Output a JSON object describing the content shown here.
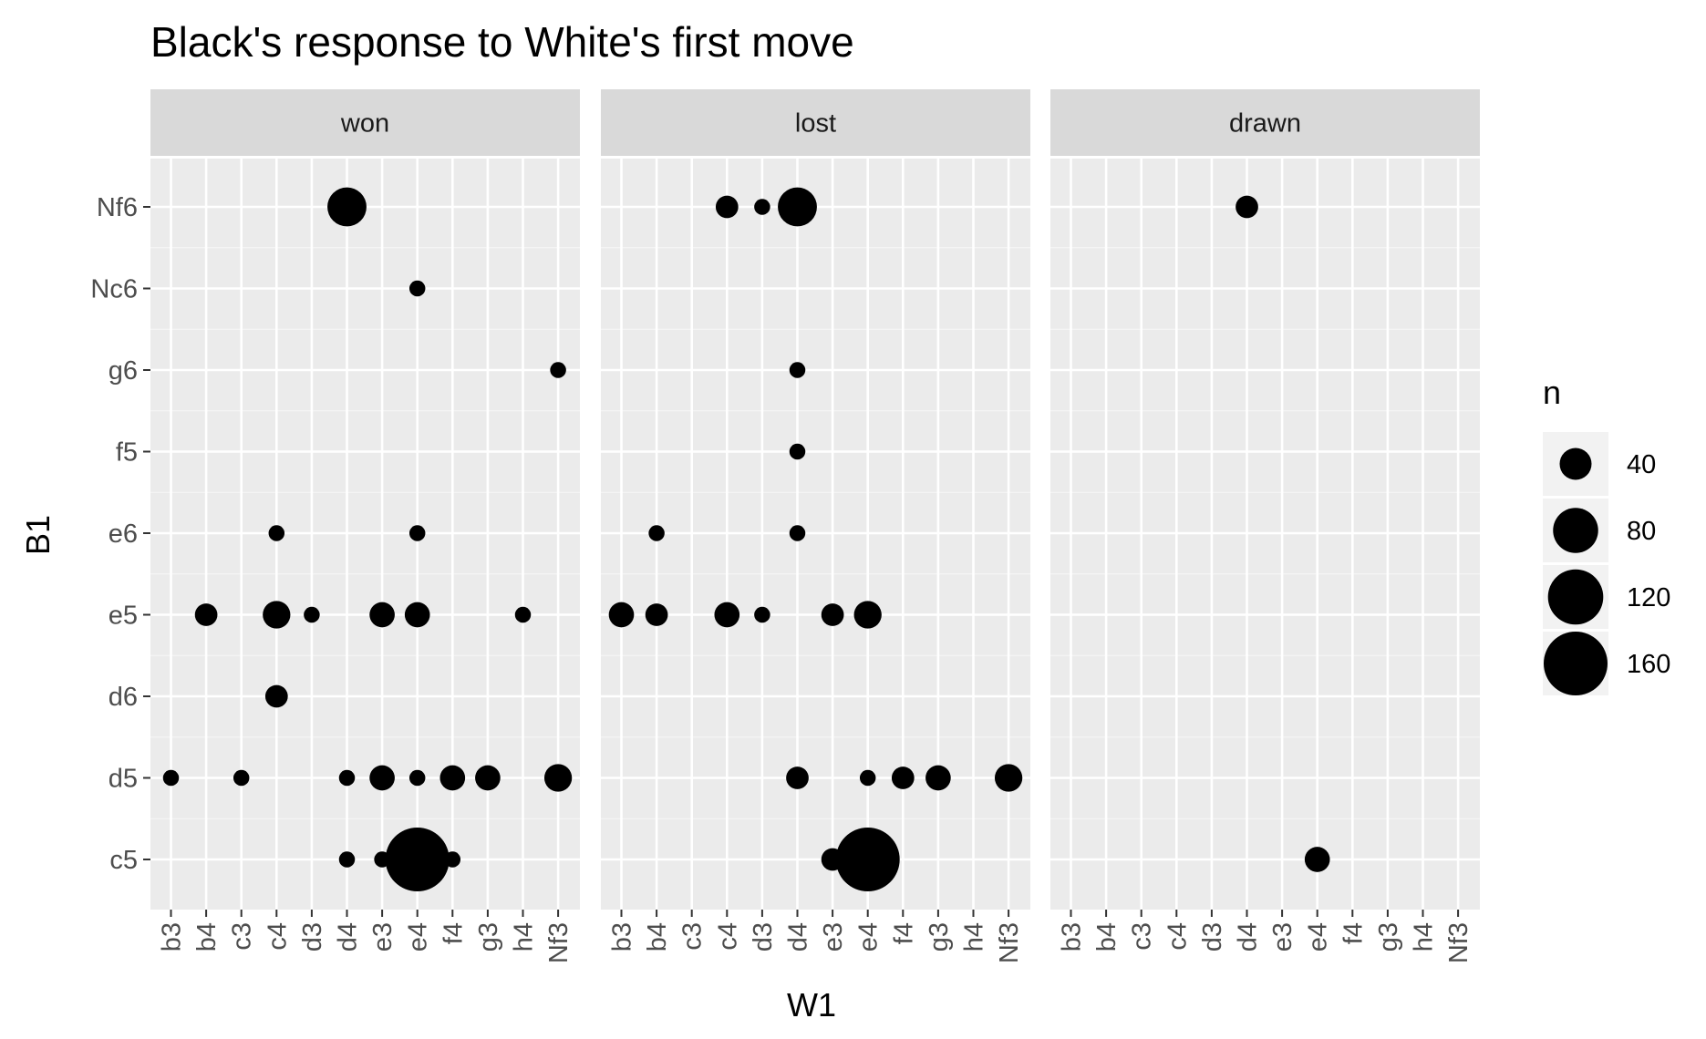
{
  "chart_data": {
    "type": "scatter",
    "title": "Black's response to White's first move",
    "xlabel": "W1",
    "ylabel": "B1",
    "x_categories": [
      "b3",
      "b4",
      "c3",
      "c4",
      "d3",
      "d4",
      "e3",
      "e4",
      "f4",
      "g3",
      "h4",
      "Nf3"
    ],
    "y_categories": [
      "c5",
      "d5",
      "d6",
      "e5",
      "e6",
      "f5",
      "g6",
      "Nc6",
      "Nf6"
    ],
    "facets": [
      "won",
      "lost",
      "drawn"
    ],
    "size_variable": "n",
    "size_legend": [
      40,
      80,
      120,
      160
    ],
    "grid": true,
    "legend_position": "right",
    "points": [
      {
        "facet": "won",
        "x": "d4",
        "y": "Nf6",
        "n": 60
      },
      {
        "facet": "won",
        "x": "e4",
        "y": "Nc6",
        "n": 10
      },
      {
        "facet": "won",
        "x": "Nf3",
        "y": "g6",
        "n": 10
      },
      {
        "facet": "won",
        "x": "c4",
        "y": "e6",
        "n": 10
      },
      {
        "facet": "won",
        "x": "e4",
        "y": "e6",
        "n": 10
      },
      {
        "facet": "won",
        "x": "b4",
        "y": "e5",
        "n": 20
      },
      {
        "facet": "won",
        "x": "c4",
        "y": "e5",
        "n": 30
      },
      {
        "facet": "won",
        "x": "d3",
        "y": "e5",
        "n": 10
      },
      {
        "facet": "won",
        "x": "e3",
        "y": "e5",
        "n": 25
      },
      {
        "facet": "won",
        "x": "e4",
        "y": "e5",
        "n": 25
      },
      {
        "facet": "won",
        "x": "h4",
        "y": "e5",
        "n": 10
      },
      {
        "facet": "won",
        "x": "c4",
        "y": "d6",
        "n": 20
      },
      {
        "facet": "won",
        "x": "b3",
        "y": "d5",
        "n": 10
      },
      {
        "facet": "won",
        "x": "c3",
        "y": "d5",
        "n": 10
      },
      {
        "facet": "won",
        "x": "d4",
        "y": "d5",
        "n": 10
      },
      {
        "facet": "won",
        "x": "e3",
        "y": "d5",
        "n": 25
      },
      {
        "facet": "won",
        "x": "e4",
        "y": "d5",
        "n": 10
      },
      {
        "facet": "won",
        "x": "f4",
        "y": "d5",
        "n": 25
      },
      {
        "facet": "won",
        "x": "g3",
        "y": "d5",
        "n": 25
      },
      {
        "facet": "won",
        "x": "Nf3",
        "y": "d5",
        "n": 30
      },
      {
        "facet": "won",
        "x": "d4",
        "y": "c5",
        "n": 10
      },
      {
        "facet": "won",
        "x": "e3",
        "y": "c5",
        "n": 10
      },
      {
        "facet": "won",
        "x": "e4",
        "y": "c5",
        "n": 160
      },
      {
        "facet": "won",
        "x": "f4",
        "y": "c5",
        "n": 10
      },
      {
        "facet": "lost",
        "x": "c4",
        "y": "Nf6",
        "n": 20
      },
      {
        "facet": "lost",
        "x": "d3",
        "y": "Nf6",
        "n": 10
      },
      {
        "facet": "lost",
        "x": "d4",
        "y": "Nf6",
        "n": 60
      },
      {
        "facet": "lost",
        "x": "d4",
        "y": "g6",
        "n": 10
      },
      {
        "facet": "lost",
        "x": "d4",
        "y": "f5",
        "n": 10
      },
      {
        "facet": "lost",
        "x": "b4",
        "y": "e6",
        "n": 10
      },
      {
        "facet": "lost",
        "x": "d4",
        "y": "e6",
        "n": 10
      },
      {
        "facet": "lost",
        "x": "b3",
        "y": "e5",
        "n": 25
      },
      {
        "facet": "lost",
        "x": "b4",
        "y": "e5",
        "n": 20
      },
      {
        "facet": "lost",
        "x": "c4",
        "y": "e5",
        "n": 25
      },
      {
        "facet": "lost",
        "x": "d3",
        "y": "e5",
        "n": 10
      },
      {
        "facet": "lost",
        "x": "e3",
        "y": "e5",
        "n": 20
      },
      {
        "facet": "lost",
        "x": "e4",
        "y": "e5",
        "n": 30
      },
      {
        "facet": "lost",
        "x": "d4",
        "y": "d5",
        "n": 20
      },
      {
        "facet": "lost",
        "x": "e4",
        "y": "d5",
        "n": 10
      },
      {
        "facet": "lost",
        "x": "f4",
        "y": "d5",
        "n": 20
      },
      {
        "facet": "lost",
        "x": "g3",
        "y": "d5",
        "n": 25
      },
      {
        "facet": "lost",
        "x": "Nf3",
        "y": "d5",
        "n": 30
      },
      {
        "facet": "lost",
        "x": "e3",
        "y": "c5",
        "n": 20
      },
      {
        "facet": "lost",
        "x": "e4",
        "y": "c5",
        "n": 160
      },
      {
        "facet": "drawn",
        "x": "d4",
        "y": "Nf6",
        "n": 20
      },
      {
        "facet": "drawn",
        "x": "e4",
        "y": "c5",
        "n": 25
      }
    ]
  }
}
